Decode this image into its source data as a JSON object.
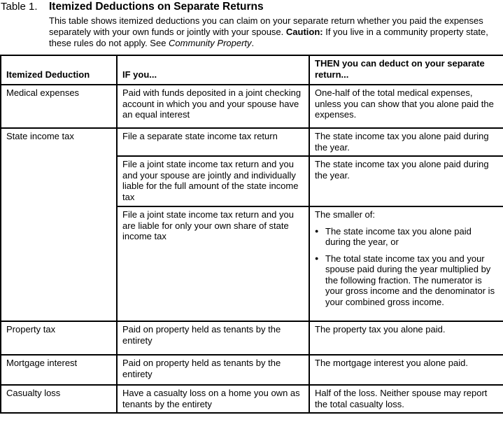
{
  "colors": {
    "text": "#000000",
    "background": "#ffffff",
    "border": "#000000"
  },
  "title": {
    "label": "Table 1.",
    "heading": "Itemized Deductions on Separate Returns"
  },
  "intro": {
    "text_1": "This table shows itemized deductions you can claim on your separate return whether you paid the expenses separately with your own funds or jointly with your spouse. ",
    "caution_label": "Caution:",
    "text_2": " If you live in a community property state, these rules do not apply. See ",
    "reference": "Community Property",
    "text_3": "."
  },
  "table": {
    "headers": [
      "Itemized Deduction",
      "IF you...",
      "THEN you can deduct on your separate return..."
    ],
    "rows": [
      {
        "deduction": "Medical expenses",
        "if": "Paid with funds deposited in a joint checking account in which you and your spouse have an equal interest",
        "then": "One-half of the total medical expenses, unless you can show that you alone paid the expenses."
      },
      {
        "deduction": "State income tax",
        "subrows": [
          {
            "if": "File a separate state income tax return",
            "then": "The state income tax you alone paid during the year."
          },
          {
            "if": "File a joint state income tax return and you and your spouse are jointly and individually liable for the full amount of the state income tax",
            "then": "The state income tax you alone paid during the year."
          },
          {
            "if": "File a joint state income tax return and you are liable for only your own share of state income tax",
            "then_intro": "The smaller of:",
            "then_bullets": [
              "The state income tax you alone paid during the year, or",
              "The total state income tax you and your spouse paid during the year multiplied by the following fraction. The numerator is your gross income and the denominator is your combined gross income."
            ]
          }
        ]
      },
      {
        "deduction": "Property tax",
        "if": "Paid on property held as tenants by the entirety",
        "then": "The property tax you alone paid."
      },
      {
        "deduction": "Mortgage interest",
        "if": "Paid on property held as tenants by the entirety",
        "then": "The mortgage interest you alone paid."
      },
      {
        "deduction": "Casualty loss",
        "if": "Have a casualty loss on a home you own as tenants by the entirety",
        "then": "Half of the loss. Neither spouse may report the total casualty loss."
      }
    ]
  }
}
